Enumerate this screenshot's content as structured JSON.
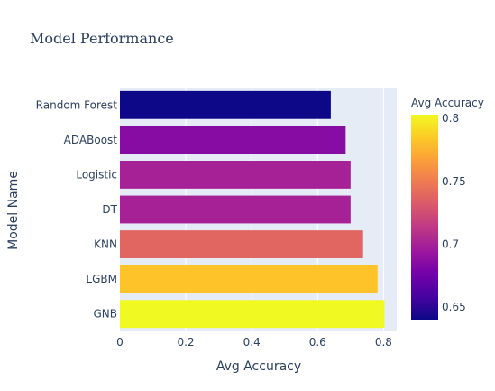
{
  "chart_data": {
    "type": "bar",
    "orientation": "horizontal",
    "title": "Model Performance",
    "xlabel": "Avg Accuracy",
    "ylabel": "Model Name",
    "categories": [
      "Random Forest",
      "ADABoost",
      "Logistic",
      "DT",
      "KNN",
      "LGBM",
      "GNB"
    ],
    "values": [
      0.64,
      0.685,
      0.7,
      0.7,
      0.738,
      0.782,
      0.803
    ],
    "xlim": [
      0,
      0.84
    ],
    "xticks": [
      0,
      0.2,
      0.4,
      0.6,
      0.8
    ],
    "xtick_labels": [
      "0",
      "0.2",
      "0.4",
      "0.6",
      "0.8"
    ],
    "grid": true,
    "colorbar": {
      "title": "Avg Accuracy",
      "range": [
        0.64,
        0.803
      ],
      "ticks": [
        0.65,
        0.7,
        0.75,
        0.8
      ],
      "tick_labels": [
        "0.65",
        "0.7",
        "0.75",
        "0.8"
      ],
      "colorscale": [
        "#0d0887",
        "#46039f",
        "#7201a8",
        "#9c179e",
        "#bd3786",
        "#d8576b",
        "#ed7953",
        "#fb9f3a",
        "#fdca26",
        "#f0f921"
      ]
    },
    "colors": {
      "plot_bg": "#e5ecf6",
      "grid": "#ffffff",
      "text": "#2a3f5f"
    }
  }
}
